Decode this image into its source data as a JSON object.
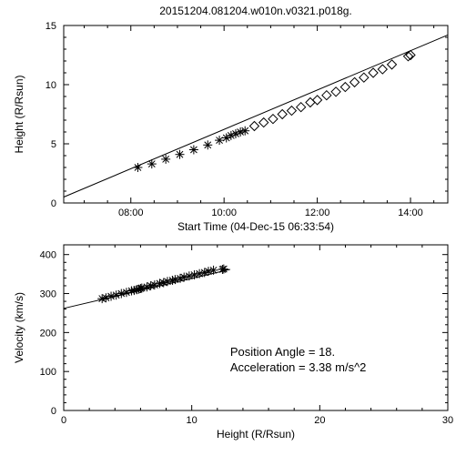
{
  "title": "20151204.081204.w010n.v0321.p018g.",
  "background_color": "#ffffff",
  "line_color": "#000000",
  "text_color": "#000000",
  "chart1": {
    "type": "scatter",
    "xlabel": "Start Time (04-Dec-15 06:33:54)",
    "ylabel": "Height (R/Rsun)",
    "xlim": [
      6.56,
      14.8
    ],
    "ylim": [
      0,
      15
    ],
    "xtick_labels": [
      "08:00",
      "10:00",
      "12:00",
      "14:00"
    ],
    "xtick_positions": [
      8,
      10,
      12,
      14
    ],
    "ytick_positions": [
      0,
      5,
      10,
      15
    ],
    "marker_size": 5,
    "line_width": 1,
    "fit_line": {
      "x1": 6.56,
      "y1": 0.5,
      "x2": 14.8,
      "y2": 14.2
    },
    "series1": {
      "marker": "asterisk",
      "points": [
        [
          8.15,
          3.0
        ],
        [
          8.45,
          3.3
        ],
        [
          8.75,
          3.7
        ],
        [
          9.05,
          4.1
        ],
        [
          9.35,
          4.5
        ],
        [
          9.65,
          4.9
        ],
        [
          9.9,
          5.3
        ],
        [
          10.05,
          5.5
        ],
        [
          10.15,
          5.7
        ],
        [
          10.25,
          5.85
        ],
        [
          10.35,
          6.0
        ],
        [
          10.45,
          6.1
        ]
      ]
    },
    "series2": {
      "marker": "diamond",
      "points": [
        [
          10.65,
          6.5
        ],
        [
          10.85,
          6.8
        ],
        [
          11.05,
          7.1
        ],
        [
          11.25,
          7.5
        ],
        [
          11.45,
          7.8
        ],
        [
          11.65,
          8.1
        ],
        [
          11.85,
          8.5
        ],
        [
          12.0,
          8.7
        ],
        [
          12.2,
          9.1
        ],
        [
          12.4,
          9.4
        ],
        [
          12.6,
          9.8
        ],
        [
          12.8,
          10.2
        ],
        [
          13.0,
          10.6
        ],
        [
          13.2,
          11.0
        ],
        [
          13.4,
          11.3
        ],
        [
          13.6,
          11.7
        ],
        [
          13.95,
          12.4
        ],
        [
          14.0,
          12.5
        ]
      ]
    },
    "label_fontsize": 12,
    "tick_fontsize": 11
  },
  "chart2": {
    "type": "scatter",
    "xlabel": "Height (R/Rsun)",
    "ylabel": "Velocity (km/s)",
    "xlim": [
      0,
      30
    ],
    "ylim": [
      0,
      425
    ],
    "xtick_positions": [
      0,
      10,
      20,
      30
    ],
    "ytick_positions": [
      0,
      100,
      200,
      300,
      400
    ],
    "marker_size": 5,
    "line_width": 1,
    "fit_line": {
      "x1": 0,
      "y1": 262,
      "x2": 13,
      "y2": 362
    },
    "series1": {
      "marker": "asterisk",
      "points": [
        [
          3.0,
          287
        ],
        [
          3.3,
          289
        ],
        [
          3.7,
          293
        ],
        [
          4.1,
          296
        ],
        [
          4.5,
          300
        ],
        [
          4.9,
          303
        ],
        [
          5.3,
          307
        ],
        [
          5.5,
          308
        ],
        [
          5.7,
          310
        ],
        [
          5.85,
          311
        ],
        [
          6.0,
          313
        ],
        [
          6.1,
          314
        ],
        [
          6.5,
          317
        ],
        [
          6.8,
          320
        ],
        [
          7.1,
          322
        ],
        [
          7.5,
          326
        ],
        [
          7.8,
          328
        ],
        [
          8.1,
          331
        ],
        [
          8.5,
          334
        ],
        [
          8.7,
          336
        ],
        [
          9.1,
          339
        ],
        [
          9.4,
          342
        ],
        [
          9.8,
          345
        ],
        [
          10.2,
          348
        ],
        [
          10.6,
          351
        ],
        [
          11.0,
          354
        ],
        [
          11.3,
          357
        ],
        [
          11.7,
          360
        ],
        [
          12.4,
          362
        ],
        [
          12.5,
          363
        ]
      ]
    },
    "annotations": {
      "position_angle_label": "Position Angle =",
      "position_angle_value": "18.",
      "acceleration_label": "Acceleration =",
      "acceleration_value": "3.38 m/s^2",
      "fontsize": 13
    },
    "label_fontsize": 12,
    "tick_fontsize": 11
  }
}
